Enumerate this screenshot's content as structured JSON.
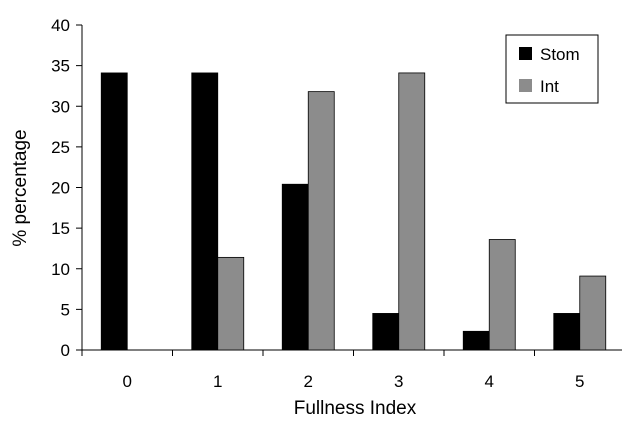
{
  "chart_data": {
    "type": "bar",
    "categories": [
      "0",
      "1",
      "2",
      "3",
      "4",
      "5"
    ],
    "series": [
      {
        "name": "Stom",
        "values": [
          34.1,
          34.1,
          20.4,
          4.5,
          2.3,
          4.5
        ]
      },
      {
        "name": "Int",
        "values": [
          0,
          11.4,
          31.8,
          34.1,
          13.6,
          9.1
        ]
      }
    ],
    "xlabel": "Fullness Index",
    "ylabel": "% percentage",
    "ylim": [
      0,
      40
    ],
    "yticks": [
      0,
      5,
      10,
      15,
      20,
      25,
      30,
      35,
      40
    ],
    "grid": false,
    "legend_position": "top-right"
  },
  "colors": {
    "Stom": "#000000",
    "Int": "#8c8c8c"
  }
}
